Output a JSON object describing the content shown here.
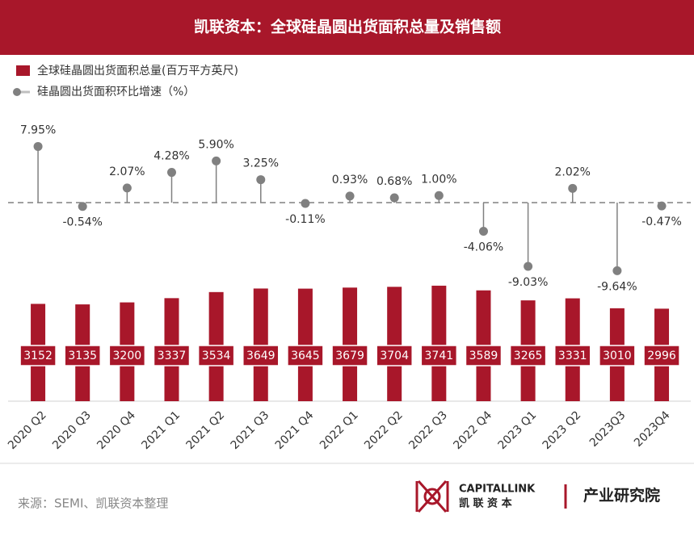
{
  "chart_data": {
    "type": "combo",
    "title": "凯联资本：全球硅晶圆出货面积总量及销售额",
    "categories": [
      "2020 Q2",
      "2020 Q3",
      "2020 Q4",
      "2021 Q1",
      "2021 Q2",
      "2021 Q3",
      "2021 Q4",
      "2022 Q1",
      "2022 Q2",
      "2022 Q3",
      "2022 Q4",
      "2023 Q1",
      "2023 Q2",
      "2023Q3",
      "2023Q4"
    ],
    "series": [
      {
        "name": "全球硅晶圆出货面积总量(百万平方英尺)",
        "type": "bar",
        "color": "#a8172a",
        "values": [
          3152,
          3135,
          3200,
          3337,
          3534,
          3649,
          3645,
          3679,
          3704,
          3741,
          3589,
          3265,
          3331,
          3010,
          2996
        ]
      },
      {
        "name": "硅晶圆出货面积环比增速（%）",
        "type": "lollipop",
        "color": "#808080",
        "axis": "y2",
        "values": [
          7.95,
          -0.54,
          2.07,
          4.28,
          5.9,
          3.25,
          -0.11,
          0.93,
          0.68,
          1.0,
          -4.06,
          -9.03,
          2.02,
          -9.64,
          -0.47
        ],
        "value_labels": [
          "7.95%",
          "-0.54%",
          "2.07%",
          "4.28%",
          "5.90%",
          "3.25%",
          "-0.11%",
          "0.93%",
          "0.68%",
          "1.00%",
          "-4.06%",
          "-9.03%",
          "2.02%",
          "-9.64%",
          "-0.47%"
        ]
      }
    ],
    "ylim": [
      0,
      4000
    ],
    "y2lim": [
      -12,
      12
    ]
  },
  "source": "来源：SEMI、凯联资本整理",
  "logo": {
    "name": "CAPITALLINK",
    "name_cn": "凯 联 资 本",
    "unit": "产业研究院"
  }
}
